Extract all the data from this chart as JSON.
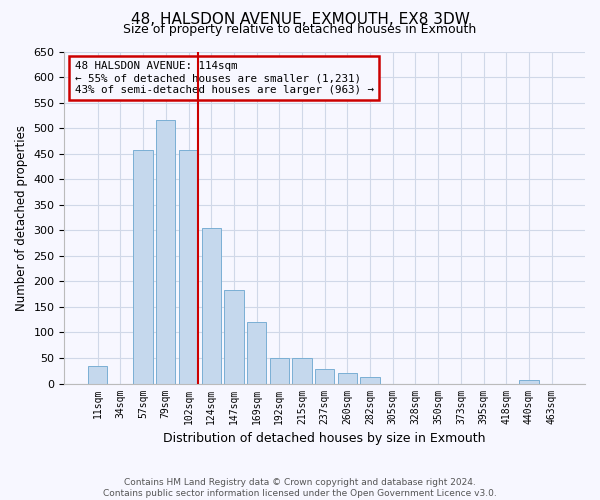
{
  "title": "48, HALSDON AVENUE, EXMOUTH, EX8 3DW",
  "subtitle": "Size of property relative to detached houses in Exmouth",
  "xlabel": "Distribution of detached houses by size in Exmouth",
  "ylabel": "Number of detached properties",
  "bar_labels": [
    "11sqm",
    "34sqm",
    "57sqm",
    "79sqm",
    "102sqm",
    "124sqm",
    "147sqm",
    "169sqm",
    "192sqm",
    "215sqm",
    "237sqm",
    "260sqm",
    "282sqm",
    "305sqm",
    "328sqm",
    "350sqm",
    "373sqm",
    "395sqm",
    "418sqm",
    "440sqm",
    "463sqm"
  ],
  "bar_values": [
    35,
    0,
    458,
    515,
    458,
    305,
    183,
    120,
    50,
    50,
    28,
    20,
    13,
    0,
    0,
    0,
    0,
    0,
    0,
    7,
    0
  ],
  "bar_color": "#c5d8ed",
  "bar_edge_color": "#7aafd4",
  "vline_color": "#cc0000",
  "vline_pos": 4.425,
  "ylim": [
    0,
    650
  ],
  "yticks": [
    0,
    50,
    100,
    150,
    200,
    250,
    300,
    350,
    400,
    450,
    500,
    550,
    600,
    650
  ],
  "annotation_line1": "48 HALSDON AVENUE: 114sqm",
  "annotation_line2": "← 55% of detached houses are smaller (1,231)",
  "annotation_line3": "43% of semi-detached houses are larger (963) →",
  "footnote1": "Contains HM Land Registry data © Crown copyright and database right 2024.",
  "footnote2": "Contains public sector information licensed under the Open Government Licence v3.0.",
  "bg_color": "#f7f7ff",
  "grid_color": "#d0d8e8"
}
